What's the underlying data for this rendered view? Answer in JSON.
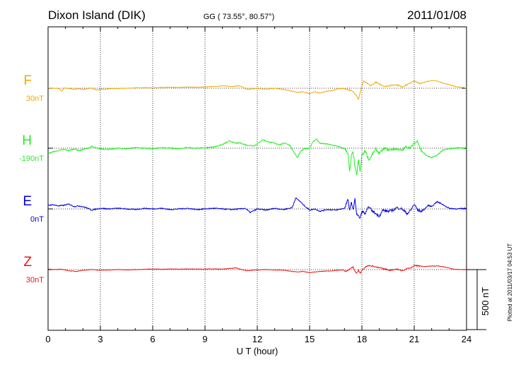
{
  "header": {
    "station": "Dixon Island (DIK)",
    "coords": "GG ( 73.55°,  80.57°)",
    "date": "2011/01/08"
  },
  "footer": {
    "plotted": "Plotted at 2011/03/17 04:53 UT"
  },
  "chart_data": {
    "type": "line",
    "title": "Dixon Island (DIK) 2011/01/08",
    "xlabel": "U T (hour)",
    "ylabel": "",
    "xlim": [
      0,
      24
    ],
    "x_ticks": [
      "0",
      "3",
      "6",
      "9",
      "12",
      "15",
      "18",
      "21",
      "24"
    ],
    "x_tick_values": [
      0,
      3,
      6,
      9,
      12,
      15,
      18,
      21,
      24
    ],
    "scale_bar_label": "500 nT",
    "scale_bar_nT": 500,
    "grid": true,
    "series": [
      {
        "name": "F",
        "baseline_label": "30nT",
        "baseline_nT": 30,
        "color": "#F5A800",
        "points": [
          [
            0,
            3
          ],
          [
            0.3,
            0
          ],
          [
            0.6,
            -3
          ],
          [
            0.8,
            -25
          ],
          [
            0.9,
            2
          ],
          [
            1.2,
            -2
          ],
          [
            1.5,
            -8
          ],
          [
            1.8,
            -5
          ],
          [
            2.0,
            -10
          ],
          [
            2.3,
            -3
          ],
          [
            2.5,
            0
          ],
          [
            2.8,
            -15
          ],
          [
            3.0,
            -10
          ],
          [
            3.5,
            -5
          ],
          [
            4,
            -3
          ],
          [
            4.5,
            0
          ],
          [
            5,
            2
          ],
          [
            5.5,
            5
          ],
          [
            6,
            3
          ],
          [
            6.5,
            6
          ],
          [
            7,
            8
          ],
          [
            7.5,
            6
          ],
          [
            8,
            10
          ],
          [
            8.5,
            8
          ],
          [
            9,
            10
          ],
          [
            9.5,
            15
          ],
          [
            10,
            20
          ],
          [
            10.5,
            15
          ],
          [
            11,
            20
          ],
          [
            11.4,
            -10
          ],
          [
            11.8,
            -5
          ],
          [
            12,
            -3
          ],
          [
            12.5,
            -8
          ],
          [
            13,
            0
          ],
          [
            13.5,
            -10
          ],
          [
            14,
            -25
          ],
          [
            14.3,
            -35
          ],
          [
            14.6,
            -30
          ],
          [
            15,
            -45
          ],
          [
            15.3,
            -30
          ],
          [
            15.6,
            -40
          ],
          [
            16,
            -25
          ],
          [
            16.3,
            -20
          ],
          [
            16.6,
            -5
          ],
          [
            17,
            -3
          ],
          [
            17.3,
            -15
          ],
          [
            17.5,
            -30
          ],
          [
            17.7,
            -60
          ],
          [
            17.8,
            -90
          ],
          [
            17.9,
            -40
          ],
          [
            18.0,
            20
          ],
          [
            18.1,
            60
          ],
          [
            18.3,
            40
          ],
          [
            18.5,
            20
          ],
          [
            18.8,
            50
          ],
          [
            19,
            35
          ],
          [
            19.3,
            15
          ],
          [
            19.5,
            20
          ],
          [
            20,
            30
          ],
          [
            20.3,
            10
          ],
          [
            20.6,
            30
          ],
          [
            21,
            60
          ],
          [
            21.3,
            40
          ],
          [
            21.6,
            50
          ],
          [
            22,
            65
          ],
          [
            22.3,
            60
          ],
          [
            22.6,
            45
          ],
          [
            23,
            30
          ],
          [
            23.5,
            10
          ],
          [
            24,
            3
          ]
        ]
      },
      {
        "name": "H",
        "baseline_label": "-190nT",
        "baseline_nT": -190,
        "color": "#22EE22",
        "points": [
          [
            0,
            -45
          ],
          [
            0.3,
            -30
          ],
          [
            0.6,
            -20
          ],
          [
            0.9,
            -10
          ],
          [
            1.2,
            -20
          ],
          [
            1.5,
            -5
          ],
          [
            1.8,
            -20
          ],
          [
            2,
            -10
          ],
          [
            2.3,
            0
          ],
          [
            2.5,
            15
          ],
          [
            2.8,
            0
          ],
          [
            3,
            -5
          ],
          [
            3.5,
            -10
          ],
          [
            4,
            0
          ],
          [
            4.5,
            -5
          ],
          [
            5,
            5
          ],
          [
            5.5,
            0
          ],
          [
            6,
            -5
          ],
          [
            6.5,
            5
          ],
          [
            7,
            0
          ],
          [
            7.5,
            -5
          ],
          [
            8,
            5
          ],
          [
            8.5,
            0
          ],
          [
            9,
            3
          ],
          [
            9.5,
            10
          ],
          [
            10,
            30
          ],
          [
            10.4,
            60
          ],
          [
            10.8,
            40
          ],
          [
            11,
            45
          ],
          [
            11.4,
            25
          ],
          [
            11.8,
            20
          ],
          [
            12,
            35
          ],
          [
            12.3,
            70
          ],
          [
            12.6,
            55
          ],
          [
            13,
            40
          ],
          [
            13.3,
            30
          ],
          [
            13.6,
            45
          ],
          [
            13.9,
            20
          ],
          [
            14,
            -10
          ],
          [
            14.3,
            -80
          ],
          [
            14.5,
            -25
          ],
          [
            14.7,
            -5
          ],
          [
            15,
            0
          ],
          [
            15.2,
            55
          ],
          [
            15.4,
            75
          ],
          [
            15.6,
            40
          ],
          [
            16,
            35
          ],
          [
            16.5,
            20
          ],
          [
            16.8,
            5
          ],
          [
            17,
            0
          ],
          [
            17.2,
            -40
          ],
          [
            17.3,
            -200
          ],
          [
            17.4,
            -60
          ],
          [
            17.5,
            -30
          ],
          [
            17.6,
            -150
          ],
          [
            17.7,
            -230
          ],
          [
            17.8,
            -100
          ],
          [
            17.9,
            -200
          ],
          [
            18,
            -60
          ],
          [
            18.2,
            -20
          ],
          [
            18.4,
            -100
          ],
          [
            18.6,
            -50
          ],
          [
            18.8,
            -10
          ],
          [
            19,
            -40
          ],
          [
            19.3,
            0
          ],
          [
            19.5,
            -15
          ],
          [
            20,
            -5
          ],
          [
            20.3,
            -20
          ],
          [
            20.5,
            10
          ],
          [
            20.8,
            5
          ],
          [
            21,
            40
          ],
          [
            21.2,
            60
          ],
          [
            21.4,
            -20
          ],
          [
            21.7,
            -60
          ],
          [
            22,
            -80
          ],
          [
            22.3,
            -60
          ],
          [
            22.6,
            -20
          ],
          [
            23,
            -5
          ],
          [
            23.3,
            0
          ],
          [
            23.7,
            5
          ],
          [
            24,
            -10
          ]
        ]
      },
      {
        "name": "E",
        "baseline_label": "0nT",
        "baseline_nT": 0,
        "color": "#0000DD",
        "points": [
          [
            0,
            30
          ],
          [
            0.3,
            35
          ],
          [
            0.6,
            25
          ],
          [
            0.9,
            30
          ],
          [
            1.2,
            40
          ],
          [
            1.5,
            20
          ],
          [
            1.8,
            25
          ],
          [
            2.2,
            10
          ],
          [
            2.5,
            -10
          ],
          [
            2.8,
            0
          ],
          [
            3,
            5
          ],
          [
            3.5,
            0
          ],
          [
            4,
            5
          ],
          [
            4.5,
            0
          ],
          [
            5,
            -5
          ],
          [
            5.5,
            5
          ],
          [
            6,
            0
          ],
          [
            6.5,
            5
          ],
          [
            7,
            -5
          ],
          [
            7.5,
            0
          ],
          [
            8,
            5
          ],
          [
            8.5,
            -5
          ],
          [
            9,
            0
          ],
          [
            9.5,
            5
          ],
          [
            10,
            0
          ],
          [
            10.5,
            -5
          ],
          [
            11,
            0
          ],
          [
            11.3,
            5
          ],
          [
            11.6,
            -30
          ],
          [
            12,
            0
          ],
          [
            12.5,
            -10
          ],
          [
            13,
            5
          ],
          [
            13.5,
            -5
          ],
          [
            14,
            10
          ],
          [
            14.2,
            90
          ],
          [
            14.4,
            70
          ],
          [
            14.6,
            40
          ],
          [
            15,
            -10
          ],
          [
            15.3,
            0
          ],
          [
            15.6,
            -20
          ],
          [
            16,
            -5
          ],
          [
            16.5,
            -10
          ],
          [
            17,
            5
          ],
          [
            17.2,
            80
          ],
          [
            17.3,
            -20
          ],
          [
            17.4,
            60
          ],
          [
            17.5,
            -10
          ],
          [
            17.6,
            80
          ],
          [
            17.7,
            -40
          ],
          [
            17.8,
            -60
          ],
          [
            17.9,
            -80
          ],
          [
            18,
            -20
          ],
          [
            18.2,
            -40
          ],
          [
            18.4,
            20
          ],
          [
            18.6,
            -20
          ],
          [
            18.8,
            -40
          ],
          [
            19,
            -60
          ],
          [
            19.2,
            -10
          ],
          [
            19.5,
            -20
          ],
          [
            19.8,
            -10
          ],
          [
            20,
            10
          ],
          [
            20.3,
            0
          ],
          [
            20.6,
            -40
          ],
          [
            20.8,
            -10
          ],
          [
            21,
            40
          ],
          [
            21.2,
            -10
          ],
          [
            21.4,
            -20
          ],
          [
            21.6,
            0
          ],
          [
            21.8,
            30
          ],
          [
            22,
            20
          ],
          [
            22.3,
            60
          ],
          [
            22.6,
            40
          ],
          [
            23,
            5
          ],
          [
            23.5,
            0
          ],
          [
            24,
            5
          ]
        ]
      },
      {
        "name": "Z",
        "baseline_label": "30nT",
        "baseline_nT": 30,
        "color": "#EE1111",
        "points": [
          [
            0,
            5
          ],
          [
            0.4,
            0
          ],
          [
            0.8,
            3
          ],
          [
            1.2,
            -10
          ],
          [
            1.6,
            -15
          ],
          [
            2,
            -5
          ],
          [
            2.5,
            0
          ],
          [
            3,
            -5
          ],
          [
            3.5,
            -3
          ],
          [
            4,
            0
          ],
          [
            4.5,
            -2
          ],
          [
            5,
            0
          ],
          [
            5.5,
            2
          ],
          [
            6,
            5
          ],
          [
            6.5,
            3
          ],
          [
            7,
            5
          ],
          [
            7.5,
            4
          ],
          [
            8,
            5
          ],
          [
            8.5,
            5
          ],
          [
            9,
            5
          ],
          [
            9.5,
            5
          ],
          [
            10,
            4
          ],
          [
            10.5,
            10
          ],
          [
            10.8,
            15
          ],
          [
            11,
            5
          ],
          [
            11.4,
            -10
          ],
          [
            11.8,
            -5
          ],
          [
            12,
            -3
          ],
          [
            12.5,
            0
          ],
          [
            13,
            -3
          ],
          [
            13.5,
            -5
          ],
          [
            14,
            -15
          ],
          [
            14.3,
            -20
          ],
          [
            14.6,
            -15
          ],
          [
            15,
            -25
          ],
          [
            15.3,
            -20
          ],
          [
            15.6,
            -15
          ],
          [
            16,
            -12
          ],
          [
            16.3,
            -10
          ],
          [
            16.6,
            -5
          ],
          [
            16.9,
            -3
          ],
          [
            17.1,
            -15
          ],
          [
            17.3,
            5
          ],
          [
            17.5,
            20
          ],
          [
            17.6,
            -15
          ],
          [
            17.7,
            -30
          ],
          [
            17.8,
            -5
          ],
          [
            17.9,
            -30
          ],
          [
            18,
            -5
          ],
          [
            18.2,
            20
          ],
          [
            18.4,
            35
          ],
          [
            18.6,
            30
          ],
          [
            18.8,
            20
          ],
          [
            19,
            15
          ],
          [
            19.3,
            5
          ],
          [
            19.6,
            -5
          ],
          [
            20,
            5
          ],
          [
            20.2,
            -5
          ],
          [
            20.4,
            -10
          ],
          [
            20.6,
            15
          ],
          [
            20.8,
            10
          ],
          [
            21,
            35
          ],
          [
            21.3,
            30
          ],
          [
            21.6,
            25
          ],
          [
            22,
            30
          ],
          [
            22.4,
            30
          ],
          [
            22.8,
            20
          ],
          [
            23.2,
            5
          ],
          [
            23.6,
            0
          ],
          [
            24,
            0
          ]
        ]
      }
    ]
  }
}
